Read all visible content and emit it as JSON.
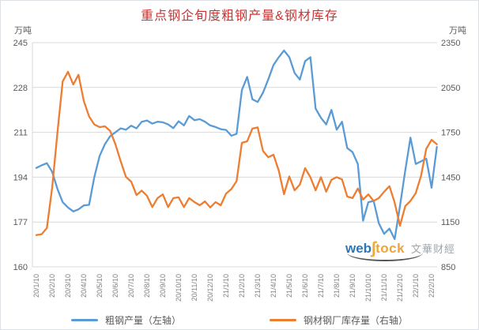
{
  "chart": {
    "title": "重点钢企旬度粗钢产量&钢材库存",
    "unit_left": "万吨",
    "unit_right": "万吨",
    "watermark": {
      "web": "web",
      "swoosh": "ʃ",
      "tock": "tock",
      "cn_text": "文華财經"
    }
  },
  "legend": {
    "items": [
      {
        "label": "粗钢产量（左轴）",
        "color": "#5B9BD5"
      },
      {
        "label": "钢材钢厂库存量（右轴）",
        "color": "#ED7D31"
      }
    ]
  },
  "colors": {
    "title": "#cc3333",
    "axis_text": "#595959",
    "x_label_text": "#808080",
    "grid": "#d9d9d9",
    "blue": "#5B9BD5",
    "orange": "#ED7D31"
  },
  "chart_data": {
    "type": "line",
    "title": "重点钢企旬度粗钢产量&钢材库存",
    "grid": true,
    "legend_position": "bottom",
    "x_frequency": "10-day (旬度), 3 points per labeled month",
    "points_per_label": 3,
    "x_labels": [
      "20/1/10",
      "20/2/10",
      "20/3/10",
      "20/4/10",
      "20/5/10",
      "20/6/10",
      "20/7/10",
      "20/8/10",
      "20/9/10",
      "20/10/10",
      "20/11/10",
      "20/12/10",
      "21/1/10",
      "21/2/10",
      "21/3/10",
      "21/4/10",
      "21/5/10",
      "21/6/10",
      "21/7/10",
      "21/8/10",
      "21/9/10",
      "21/10/10",
      "21/11/10",
      "21/12/10",
      "22/1/10",
      "22/2/10"
    ],
    "left_axis": {
      "label": "万吨",
      "min": 160,
      "max": 245,
      "ticks": [
        245,
        228,
        211,
        194,
        177,
        160
      ]
    },
    "right_axis": {
      "label": "万吨",
      "min": 850,
      "max": 2350,
      "ticks": [
        2350,
        2050,
        1750,
        1450,
        1150,
        850
      ]
    },
    "series": [
      {
        "name": "粗钢产量（左轴）",
        "axis": "left",
        "color": "#5B9BD5",
        "values": [
          197.5,
          198.5,
          199.3,
          196,
          189.5,
          184.5,
          182.5,
          181,
          181.8,
          183.3,
          183.5,
          194,
          202,
          206.5,
          209.5,
          211,
          212.5,
          212,
          213.5,
          212.5,
          215,
          215.5,
          214.3,
          215,
          214.8,
          214,
          212.6,
          215.2,
          213.6,
          217.2,
          215.6,
          216,
          215,
          213.6,
          213,
          212.2,
          211.9,
          209.7,
          210.4,
          227,
          232,
          223.5,
          222.5,
          226,
          231,
          236.5,
          239.5,
          242,
          239.5,
          233.5,
          231,
          238,
          239.5,
          220,
          216.5,
          214,
          219.5,
          212,
          215,
          205,
          203.5,
          199,
          177.5,
          184.5,
          185,
          176.5,
          172.5,
          174.5,
          170.5,
          183,
          196.5,
          209,
          199,
          200,
          201,
          190,
          205.5
        ]
      },
      {
        "name": "钢材钢厂库存量（右轴）",
        "axis": "right",
        "color": "#ED7D31",
        "values": [
          1063,
          1068,
          1110,
          1380,
          1750,
          2090,
          2155,
          2070,
          2135,
          1960,
          1856,
          1803,
          1785,
          1790,
          1760,
          1670,
          1556,
          1452,
          1420,
          1330,
          1360,
          1325,
          1250,
          1310,
          1335,
          1250,
          1310,
          1315,
          1250,
          1310,
          1283,
          1262,
          1288,
          1247,
          1283,
          1262,
          1340,
          1370,
          1423,
          1680,
          1690,
          1775,
          1783,
          1626,
          1583,
          1600,
          1494,
          1336,
          1455,
          1362,
          1400,
          1510,
          1450,
          1362,
          1450,
          1353,
          1432,
          1450,
          1435,
          1320,
          1310,
          1374,
          1300,
          1335,
          1291,
          1310,
          1353,
          1390,
          1280,
          1125,
          1256,
          1291,
          1344,
          1459,
          1640,
          1700,
          1670
        ]
      }
    ]
  }
}
